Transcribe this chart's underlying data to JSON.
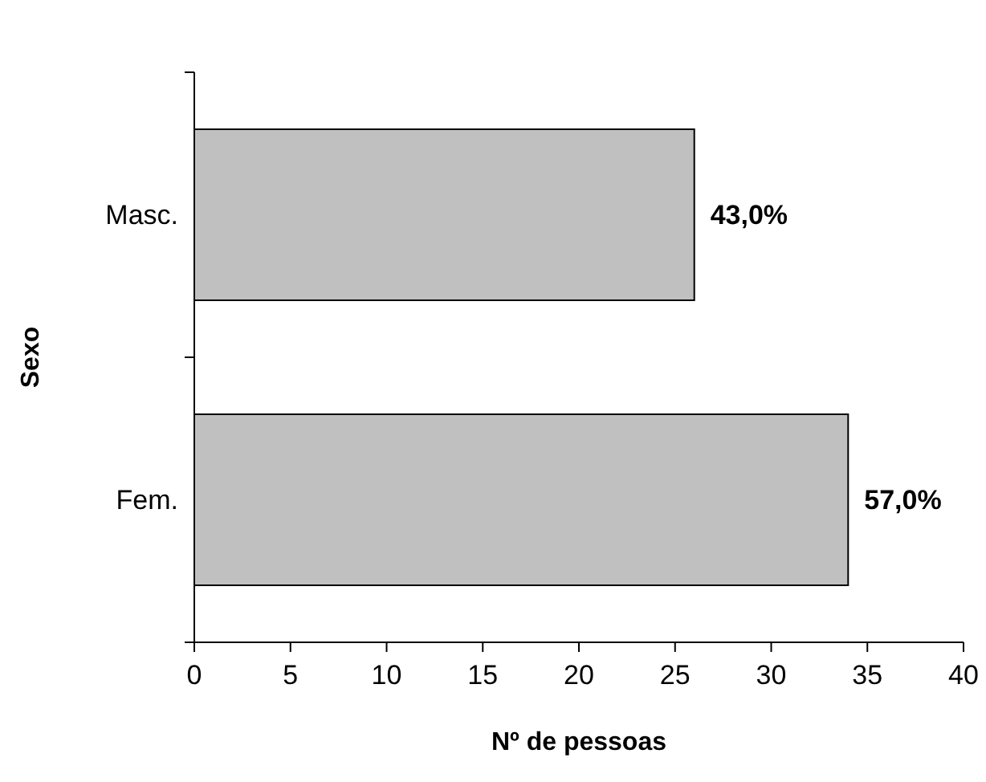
{
  "chart_data": {
    "type": "bar",
    "orientation": "horizontal",
    "categories": [
      "Masc.",
      "Fem."
    ],
    "values": [
      26,
      34
    ],
    "color": "#c0c0c0",
    "xlim": [
      0,
      40
    ],
    "xticks": [
      0,
      5,
      10,
      15,
      20,
      25,
      30,
      35,
      40
    ],
    "xlabel": "Nº de pessoas",
    "ylabel": "Sexo",
    "grid": false,
    "annotations": [
      {
        "text": "43,0%",
        "x": 26,
        "y": "Masc."
      },
      {
        "text": "57,0%",
        "x": 34,
        "y": "Fem."
      }
    ]
  }
}
